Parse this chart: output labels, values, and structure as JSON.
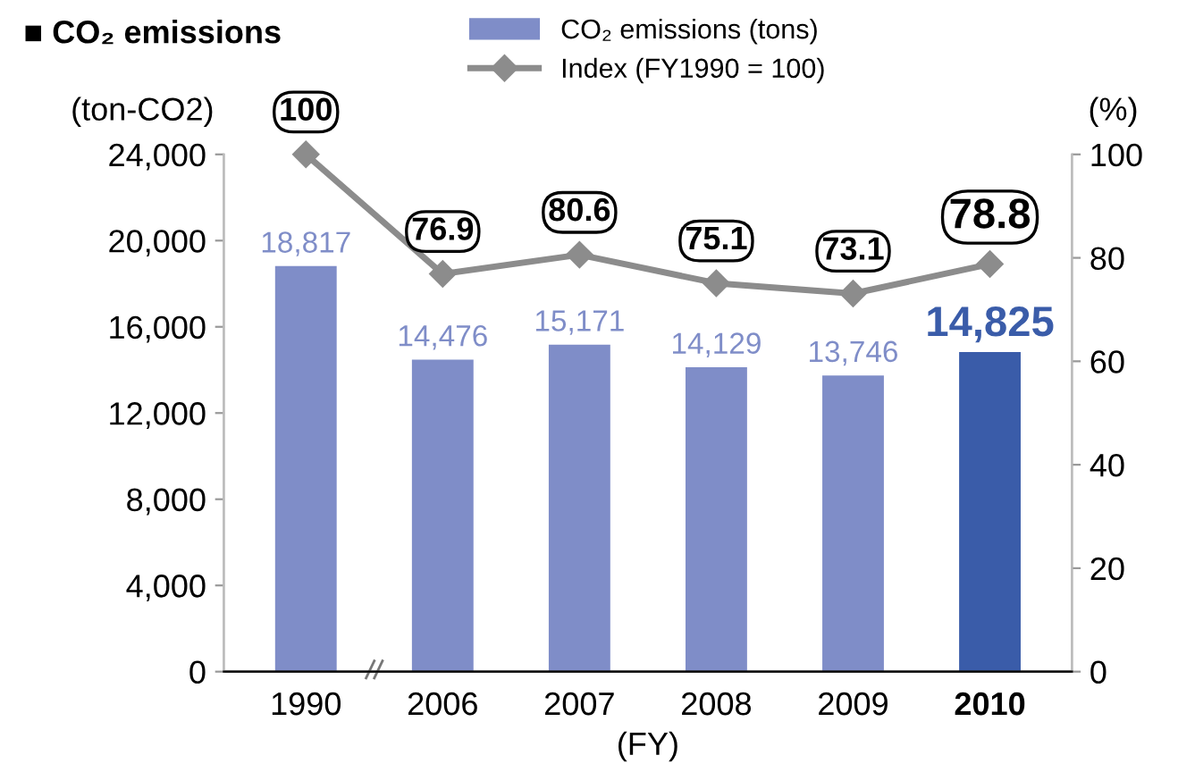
{
  "chart_data": {
    "type": "bar",
    "title": "■ CO₂ emissions",
    "ylabel": "(ton-CO2)",
    "y2label": "(%)",
    "xlabel": "(FY)",
    "categories": [
      "1990",
      "2006",
      "2007",
      "2008",
      "2009",
      "2010"
    ],
    "series": [
      {
        "name": "CO₂ emissions (tons)",
        "color": "#7f8dc8",
        "colors": [
          "#7f8dc8",
          "#7f8dc8",
          "#7f8dc8",
          "#7f8dc8",
          "#7f8dc8",
          "#3a5ca9"
        ],
        "values": [
          18817,
          14476,
          15171,
          14129,
          13746,
          14825
        ],
        "value_labels": [
          "18,817",
          "14,476",
          "15,171",
          "14,129",
          "13,746",
          "14,825"
        ]
      },
      {
        "name": "Index (FY1990 = 100)",
        "type": "line",
        "axis": "y2",
        "color": "#8c8c8c",
        "marker": "diamond",
        "values": [
          100,
          76.9,
          80.6,
          75.1,
          73.1,
          78.8
        ],
        "value_labels": [
          "100",
          "76.9",
          "80.6",
          "75.1",
          "73.1",
          "78.8"
        ]
      }
    ],
    "ylim": [
      0,
      24000
    ],
    "yticks": [
      {
        "value": 0,
        "label": "0"
      },
      {
        "value": 4000,
        "label": "4,000"
      },
      {
        "value": 8000,
        "label": "8,000"
      },
      {
        "value": 12000,
        "label": "12,000"
      },
      {
        "value": 16000,
        "label": "16,000"
      },
      {
        "value": 20000,
        "label": "20,000"
      },
      {
        "value": 24000,
        "label": "24,000"
      }
    ],
    "y2lim": [
      0,
      100
    ],
    "y2ticks": [
      0,
      20,
      40,
      60,
      80,
      100
    ],
    "grid": false,
    "legend": "top"
  }
}
